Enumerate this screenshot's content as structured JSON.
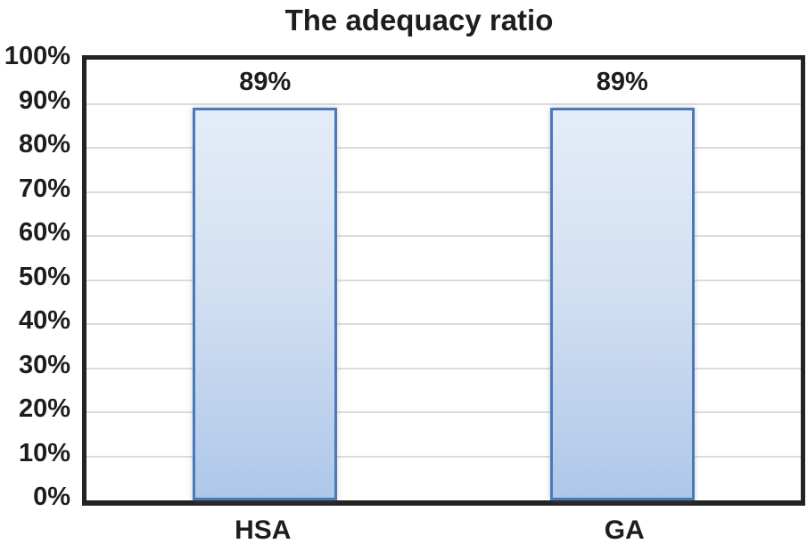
{
  "chart_data": {
    "type": "bar",
    "title": "The adequacy ratio",
    "categories": [
      "HSA",
      "GA"
    ],
    "values": [
      89,
      89
    ],
    "value_labels": [
      "89%",
      "89%"
    ],
    "xlabel": "",
    "ylabel": "",
    "ylim": [
      0,
      100
    ],
    "ytick_values": [
      0,
      10,
      20,
      30,
      40,
      50,
      60,
      70,
      80,
      90,
      100
    ],
    "ytick_labels": [
      "0%",
      "10%",
      "20%",
      "30%",
      "40%",
      "50%",
      "60%",
      "70%",
      "80%",
      "90%",
      "100%"
    ],
    "grid": "horizontal",
    "legend": "none"
  },
  "colors": {
    "bar_fill_top": "#e4ecf8",
    "bar_fill_mid": "#d3e0f2",
    "bar_fill_bottom": "#aec7e9",
    "bar_border": "#4a7ab8",
    "gridline": "#dcdcdc",
    "plot_border": "#242424",
    "text": "#1d1d1d"
  }
}
